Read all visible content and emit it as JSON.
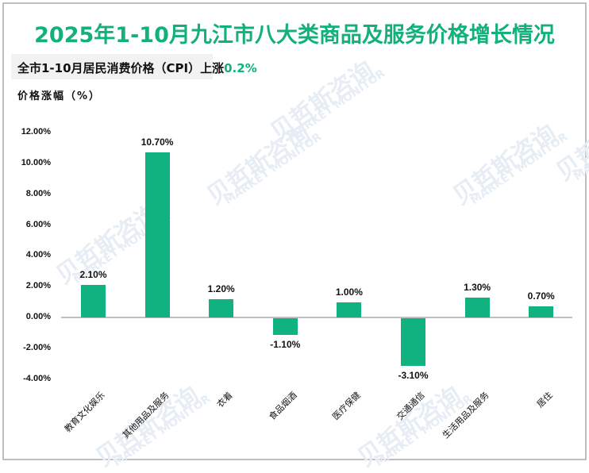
{
  "title": "2025年1-10月九江市八大类商品及服务价格增长情况",
  "subtitle": {
    "prefix": "全市1-10月居民消费价格（CPI）上涨",
    "highlight": "0.2%"
  },
  "watermark": {
    "cn": "贝哲斯咨询",
    "en": "MARKET MONITOR"
  },
  "colors": {
    "accent": "#13b07d",
    "bar": "#10b27f",
    "axis": "#bfbfbf"
  },
  "chart_data": {
    "type": "bar",
    "title": "2025年1-10月九江市八大类商品及服务价格增长情况",
    "subtitle": "全市1-10月居民消费价格（CPI）上涨0.2%",
    "xlabel": "",
    "ylabel": "价格涨幅（%）",
    "categories": [
      "教育文化娱乐",
      "其他用品及服务",
      "衣着",
      "食品烟酒",
      "医疗保健",
      "交通通信",
      "生活用品及服务",
      "居住"
    ],
    "values": [
      2.1,
      10.7,
      1.2,
      -1.1,
      1.0,
      -3.1,
      1.3,
      0.7
    ],
    "value_labels": [
      "2.10%",
      "10.70%",
      "1.20%",
      "-1.10%",
      "1.00%",
      "-3.10%",
      "1.30%",
      "0.70%"
    ],
    "yticks": [
      "12.00%",
      "10.00%",
      "8.00%",
      "6.00%",
      "4.00%",
      "2.00%",
      "0.00%",
      "-2.00%",
      "-4.00%"
    ],
    "ylim": [
      -4,
      12
    ],
    "grid": false,
    "legend": null
  }
}
